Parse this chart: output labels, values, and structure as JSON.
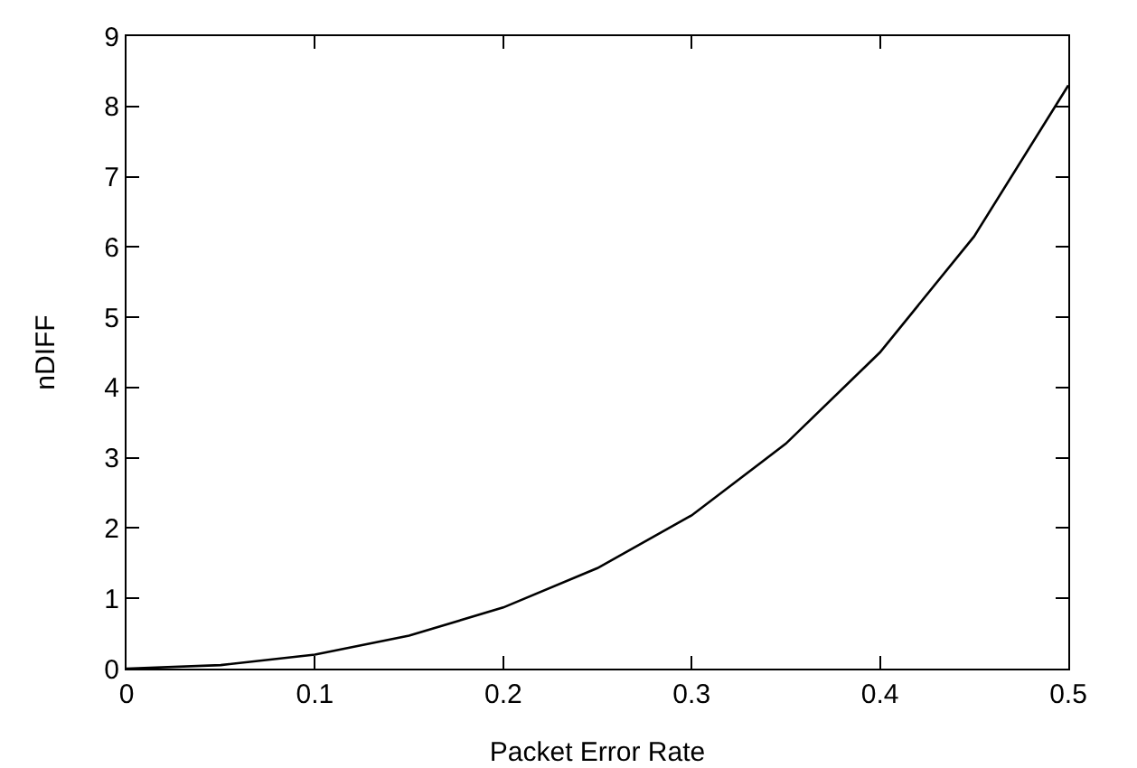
{
  "chart_data": {
    "type": "line",
    "xlabel": "Packet Error Rate",
    "ylabel": "nDIFF",
    "x": [
      0,
      0.05,
      0.1,
      0.15,
      0.2,
      0.25,
      0.3,
      0.35,
      0.4,
      0.45,
      0.5
    ],
    "series": [
      {
        "color": "#000000",
        "values": [
          0,
          0.05,
          0.2,
          0.47,
          0.87,
          1.43,
          2.18,
          3.2,
          4.5,
          6.15,
          8.3
        ]
      }
    ],
    "xlim": [
      0,
      0.5
    ],
    "xticks": [
      0,
      0.1,
      0.2,
      0.3,
      0.4,
      0.5
    ],
    "ylim": [
      0,
      9
    ],
    "yticks": [
      0,
      1,
      2,
      3,
      4,
      5,
      6,
      7,
      8,
      9
    ],
    "grid": false,
    "marker": "none",
    "line_style": "solid"
  }
}
